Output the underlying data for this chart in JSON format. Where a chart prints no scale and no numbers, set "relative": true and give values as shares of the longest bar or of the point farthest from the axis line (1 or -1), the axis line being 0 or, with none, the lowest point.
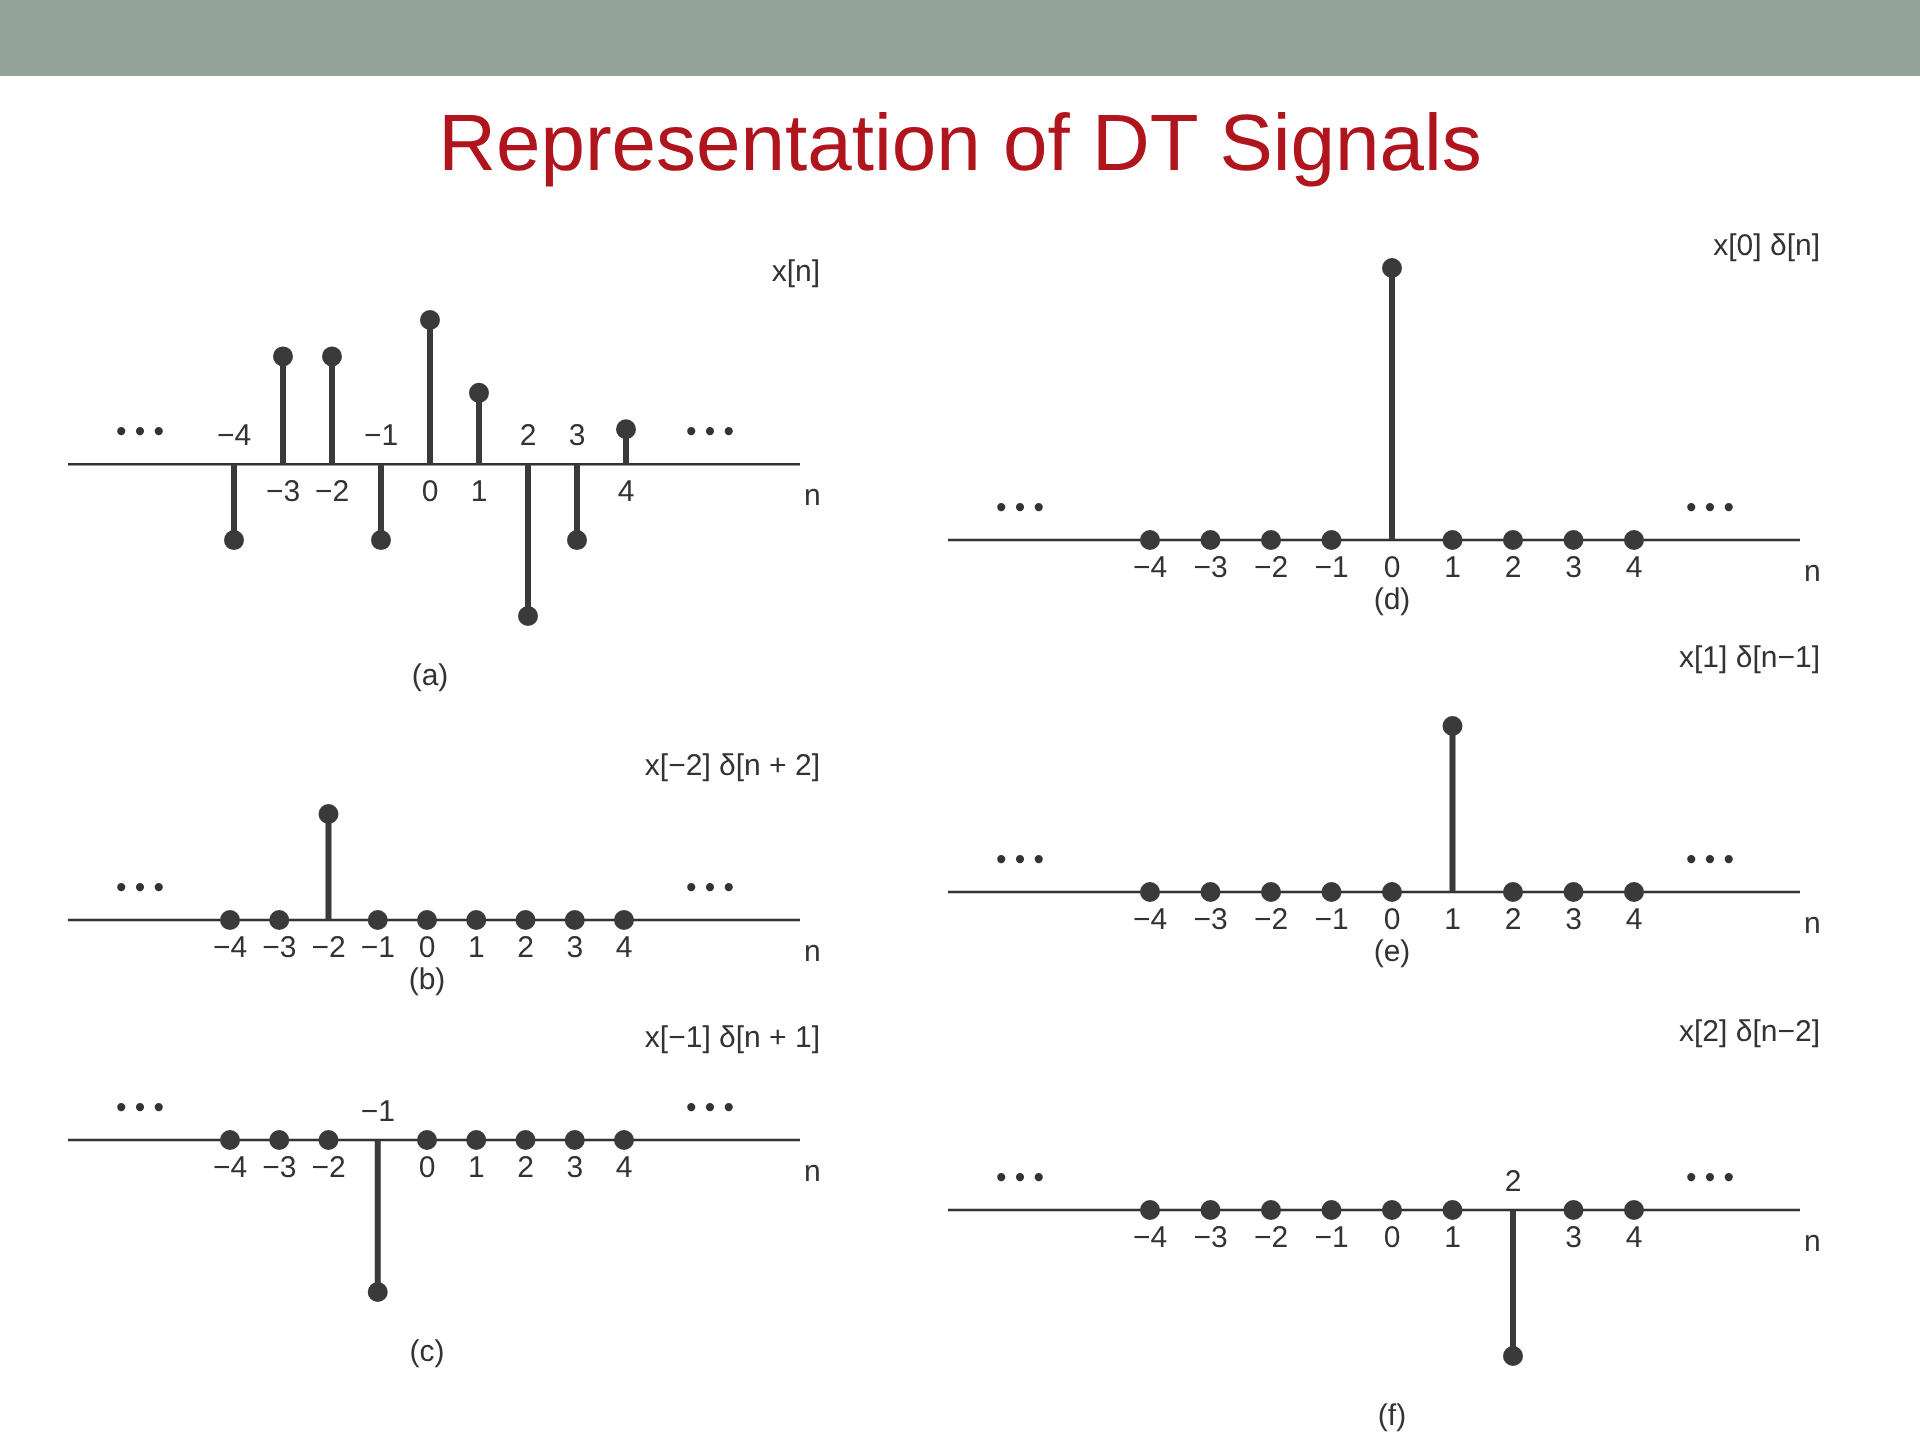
{
  "chart_data": [
    {
      "type": "lollipop",
      "title": "Representation of DT Signals",
      "ylabel": "x[n]",
      "xlabel": "n",
      "subtitle": "(a)",
      "relative": true,
      "marker": "circle",
      "color": "#3a3a3a",
      "annotations": [
        "• • •",
        "• • •"
      ],
      "categories": [
        "−4",
        "−3",
        "−2",
        "−1",
        "0",
        "1",
        "2",
        "3",
        "4"
      ],
      "values": [
        -0.5,
        0.71,
        0.71,
        -0.5,
        0.95,
        0.47,
        -1,
        -0.5,
        0.23
      ]
    },
    {
      "type": "lollipop",
      "ylabel": "x[−2] δ[n + 2]",
      "xlabel": "n",
      "subtitle": "(b)",
      "relative": true,
      "marker": "circle",
      "color": "#3a3a3a",
      "annotations": [
        "• • •",
        "• • •"
      ],
      "categories": [
        "−4",
        "−3",
        "−2",
        "−1",
        "0",
        "1",
        "2",
        "3",
        "4"
      ],
      "values": [
        0,
        0,
        1,
        0,
        0,
        0,
        0,
        0,
        0
      ]
    },
    {
      "type": "lollipop",
      "ylabel": "x[−1] δ[n + 1]",
      "xlabel": "n",
      "subtitle": "(c)",
      "relative": true,
      "marker": "circle",
      "color": "#3a3a3a",
      "annotations": [
        "• • •",
        "• • •"
      ],
      "categories": [
        "−4",
        "−3",
        "−2",
        "−1",
        "0",
        "1",
        "2",
        "3",
        "4"
      ],
      "values": [
        0,
        0,
        0,
        -1,
        0,
        0,
        0,
        0,
        0
      ]
    },
    {
      "type": "lollipop",
      "ylabel": "x[0] δ[n]",
      "xlabel": "n",
      "subtitle": "(d)",
      "relative": true,
      "marker": "circle",
      "color": "#3a3a3a",
      "annotations": [
        "• • •",
        "• • •"
      ],
      "categories": [
        "−4",
        "−3",
        "−2",
        "−1",
        "0",
        "1",
        "2",
        "3",
        "4"
      ],
      "values": [
        0,
        0,
        0,
        0,
        1,
        0,
        0,
        0,
        0
      ]
    },
    {
      "type": "lollipop",
      "ylabel": "x[1] δ[n−1]",
      "xlabel": "n",
      "subtitle": "(e)",
      "relative": true,
      "marker": "circle",
      "color": "#3a3a3a",
      "annotations": [
        "• • •",
        "• • •"
      ],
      "categories": [
        "−4",
        "−3",
        "−2",
        "−1",
        "0",
        "1",
        "2",
        "3",
        "4"
      ],
      "values": [
        0,
        0,
        0,
        0,
        0,
        1,
        0,
        0,
        0
      ]
    },
    {
      "type": "lollipop",
      "ylabel": "x[2] δ[n−2]",
      "xlabel": "n",
      "subtitle": "(f)",
      "relative": true,
      "marker": "circle",
      "color": "#3a3a3a",
      "annotations": [
        "• • •",
        "• • •"
      ],
      "categories": [
        "−4",
        "−3",
        "−2",
        "−1",
        "0",
        "1",
        "2",
        "3",
        "4"
      ],
      "values": [
        0,
        0,
        0,
        0,
        0,
        0,
        -1,
        0,
        0
      ]
    }
  ]
}
